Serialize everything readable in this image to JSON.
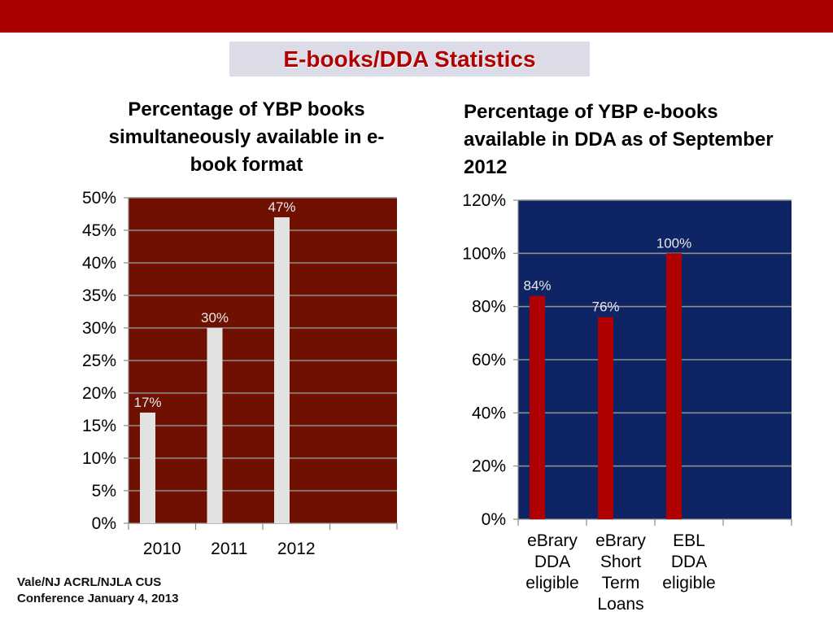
{
  "header": {
    "title": "E-books/DDA Statistics"
  },
  "footer": {
    "line1": "Vale/NJ ACRL/NJLA CUS",
    "line2": "Conference January 4, 2013"
  },
  "colors": {
    "top_bar": "#a80000",
    "title_text": "#b00000",
    "chart1_plot_bg": "#701000",
    "chart1_bar": "#e2e2e2",
    "chart2_plot_bg": "#0e2464",
    "chart2_bar": "#b00000"
  },
  "chart_data": [
    {
      "type": "bar",
      "title": "Percentage of YBP books simultaneously available in e-book format",
      "categories": [
        "2010",
        "2011",
        "2012"
      ],
      "values": [
        17,
        30,
        47
      ],
      "data_labels": [
        "17%",
        "30%",
        "47%"
      ],
      "ylim": [
        0,
        50
      ],
      "yticks": [
        "0%",
        "5%",
        "10%",
        "15%",
        "20%",
        "25%",
        "30%",
        "35%",
        "40%",
        "45%",
        "50%"
      ],
      "grid": true,
      "xlabel": "",
      "ylabel": ""
    },
    {
      "type": "bar",
      "title": "Percentage of YBP e-books available in DDA as of September 2012",
      "categories": [
        [
          "eBrary",
          "DDA",
          "eligible"
        ],
        [
          "eBrary",
          "Short",
          "Term",
          "Loans"
        ],
        [
          "EBL",
          "DDA",
          "eligible"
        ]
      ],
      "values": [
        84,
        76,
        100
      ],
      "data_labels": [
        "84%",
        "76%",
        "100%"
      ],
      "ylim": [
        0,
        120
      ],
      "yticks": [
        "0%",
        "20%",
        "40%",
        "60%",
        "80%",
        "100%",
        "120%"
      ],
      "grid": true,
      "xlabel": "",
      "ylabel": ""
    }
  ]
}
